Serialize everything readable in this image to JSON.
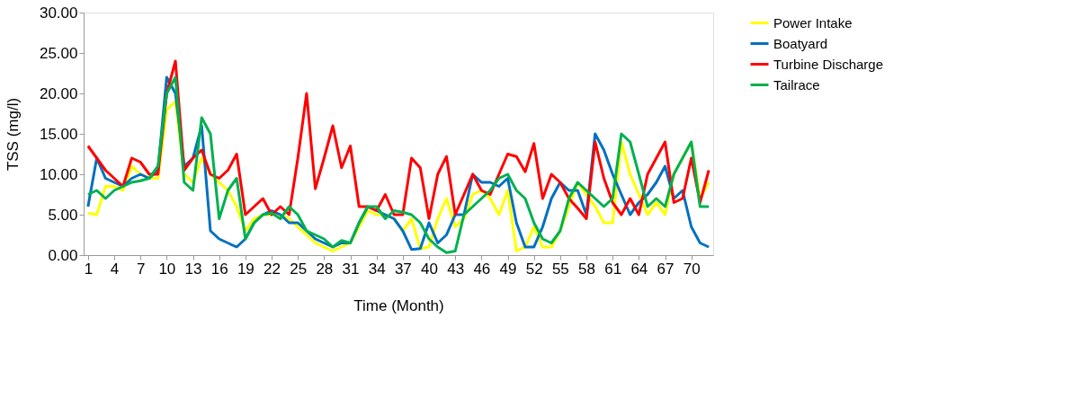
{
  "chart_data": {
    "type": "line",
    "xlabel": "Time (Month)",
    "ylabel": "TSS (mg/l)",
    "categories": [
      "1",
      null,
      null,
      "4",
      null,
      null,
      "7",
      null,
      null,
      "10",
      null,
      null,
      "13",
      null,
      null,
      "16",
      null,
      null,
      "19",
      null,
      null,
      "22",
      null,
      null,
      "25",
      null,
      null,
      "28",
      null,
      null,
      "31",
      null,
      null,
      "34",
      null,
      null,
      "37",
      null,
      null,
      "40",
      null,
      null,
      "43",
      null,
      null,
      "46",
      null,
      null,
      "49",
      null,
      null,
      "52",
      null,
      null,
      "55",
      null,
      null,
      "58",
      null,
      null,
      "61",
      null,
      null,
      "64",
      null,
      null,
      "67",
      null,
      null,
      "70",
      null,
      null
    ],
    "ylim": [
      0,
      30
    ],
    "yticks": [
      {
        "value": 0,
        "label": "0.00"
      },
      {
        "value": 5,
        "label": "5.00"
      },
      {
        "value": 10,
        "label": "10.00"
      },
      {
        "value": 15,
        "label": "15.00"
      },
      {
        "value": 20,
        "label": "20.00"
      },
      {
        "value": 25,
        "label": "25.00"
      },
      {
        "value": 30,
        "label": "30.00"
      }
    ],
    "grid": false,
    "legend": "top right",
    "marker": "none",
    "line_style": "solid",
    "series": [
      {
        "name": "Power Intake",
        "color": "#ffff00",
        "values": [
          5.2,
          5,
          8.5,
          8.5,
          8,
          11,
          10,
          9.5,
          9.5,
          18,
          19,
          10,
          9,
          12,
          10,
          9,
          8,
          6,
          3,
          4.5,
          5,
          5,
          5,
          4.5,
          3.5,
          2.5,
          1.5,
          1,
          0.5,
          1,
          1.5,
          3.5,
          5.5,
          5,
          5,
          4.5,
          3,
          4.5,
          0.8,
          1,
          4.5,
          7,
          3.5,
          4.5,
          7.5,
          8,
          7,
          5,
          8,
          0.5,
          1,
          3.5,
          1,
          1,
          3,
          6,
          9,
          7.5,
          6,
          4,
          4,
          14,
          10,
          7.5,
          5,
          6.5,
          5,
          10,
          12,
          14,
          7,
          9
        ]
      },
      {
        "name": "Boatyard",
        "color": "#0070c0",
        "values": [
          6,
          12,
          9.5,
          9,
          8.5,
          9.5,
          10,
          9.5,
          10.5,
          22,
          20,
          11,
          12,
          16,
          3,
          2,
          1.5,
          1,
          2,
          4,
          5,
          5.5,
          5,
          4,
          4,
          3,
          2,
          1.5,
          1,
          1.5,
          1.5,
          4,
          6,
          5.5,
          5,
          4.5,
          3,
          0.7,
          0.8,
          4,
          1.5,
          2.5,
          5,
          5,
          10,
          9,
          9,
          8.5,
          9.5,
          4,
          1,
          1,
          3.5,
          7,
          9,
          8,
          8,
          5,
          15,
          13,
          10,
          7.5,
          5,
          6.5,
          7.5,
          9,
          11,
          7,
          8,
          3.5,
          1.5,
          1
        ]
      },
      {
        "name": "Turbine Discharge",
        "color": "#ff0000",
        "values": [
          13.5,
          12,
          10.5,
          9.5,
          8.5,
          12,
          11.5,
          10,
          10,
          20,
          24,
          10.5,
          12,
          13,
          10,
          9.5,
          10.5,
          12.5,
          5,
          6,
          7,
          5,
          6,
          5,
          12,
          20,
          8.2,
          12,
          16,
          10.8,
          13.5,
          6,
          6,
          5.5,
          7.5,
          5,
          5,
          12,
          10.8,
          4.5,
          10,
          12.2,
          5,
          7.5,
          10,
          8,
          7.5,
          10,
          12.5,
          12.2,
          10.3,
          13.8,
          7,
          10,
          9,
          7,
          5.8,
          4.5,
          14,
          9.5,
          6.5,
          5,
          7,
          5,
          10,
          12,
          14,
          6.5,
          7,
          12,
          6.5,
          10.5
        ]
      },
      {
        "name": "Tailrace",
        "color": "#00b050",
        "values": [
          7.5,
          8,
          7,
          8,
          8.5,
          9,
          9.2,
          9.5,
          11,
          20,
          22,
          9,
          8,
          17,
          15,
          4.5,
          8,
          9.5,
          2,
          4,
          5,
          5.2,
          4.5,
          6,
          5,
          3,
          2.5,
          2,
          1,
          1.8,
          1.5,
          4,
          6,
          6,
          4.5,
          5.5,
          5.3,
          5,
          4,
          2,
          1,
          0.3,
          0.5,
          5,
          6,
          7,
          8,
          9.5,
          10,
          8,
          7,
          4,
          2,
          1.5,
          3,
          7,
          9,
          8,
          7,
          6,
          7,
          15,
          14,
          10,
          6,
          7,
          6,
          10,
          12,
          14,
          6,
          6
        ]
      }
    ]
  }
}
